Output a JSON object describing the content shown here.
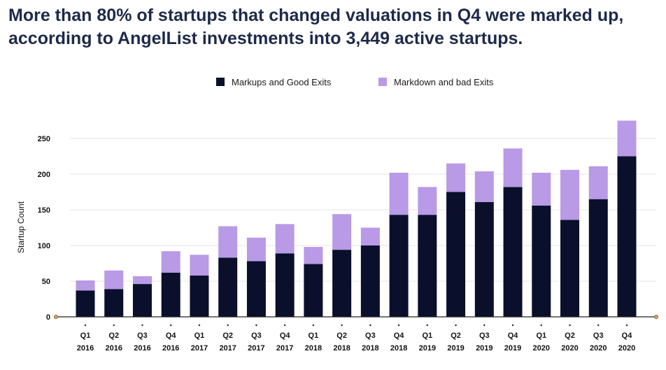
{
  "title": "More than 80% of startups that changed valuations in Q4 were marked up, according to AngelList investments into 3,449 active startups.",
  "colors": {
    "markups": "#0a0f2c",
    "markdowns": "#b89ae6",
    "grid": "#e6e6e6",
    "axis": "#222222",
    "marker": "#e8a24a"
  },
  "chart_data": {
    "type": "bar",
    "stacked": true,
    "title": "More than 80% of startups that changed valuations in Q4 were marked up, according to AngelList investments into 3,449 active startups.",
    "ylabel": "Startup Count",
    "xlabel": "",
    "ylim": [
      0,
      275
    ],
    "yticks": [
      0,
      50,
      100,
      150,
      200,
      250
    ],
    "grid": true,
    "legend_position": "top-center",
    "categories": [
      [
        "Q1",
        "2016"
      ],
      [
        "Q2",
        "2016"
      ],
      [
        "Q3",
        "2016"
      ],
      [
        "Q4",
        "2016"
      ],
      [
        "Q1",
        "2017"
      ],
      [
        "Q2",
        "2017"
      ],
      [
        "Q3",
        "2017"
      ],
      [
        "Q4",
        "2017"
      ],
      [
        "Q1",
        "2018"
      ],
      [
        "Q2",
        "2018"
      ],
      [
        "Q3",
        "2018"
      ],
      [
        "Q4",
        "2018"
      ],
      [
        "Q1",
        "2019"
      ],
      [
        "Q2",
        "2019"
      ],
      [
        "Q3",
        "2019"
      ],
      [
        "Q4",
        "2019"
      ],
      [
        "Q1",
        "2020"
      ],
      [
        "Q2",
        "2020"
      ],
      [
        "Q3",
        "2020"
      ],
      [
        "Q4",
        "2020"
      ]
    ],
    "series": [
      {
        "name": "Markups and Good Exits",
        "color": "#0a0f2c",
        "values": [
          37,
          39,
          46,
          62,
          58,
          83,
          78,
          89,
          74,
          94,
          100,
          143,
          143,
          175,
          161,
          182,
          156,
          136,
          165,
          225
        ]
      },
      {
        "name": "Markdown and bad Exits",
        "color": "#b89ae6",
        "values": [
          14,
          26,
          11,
          30,
          29,
          44,
          33,
          41,
          24,
          50,
          25,
          59,
          39,
          40,
          43,
          54,
          46,
          70,
          46,
          50
        ]
      }
    ]
  }
}
